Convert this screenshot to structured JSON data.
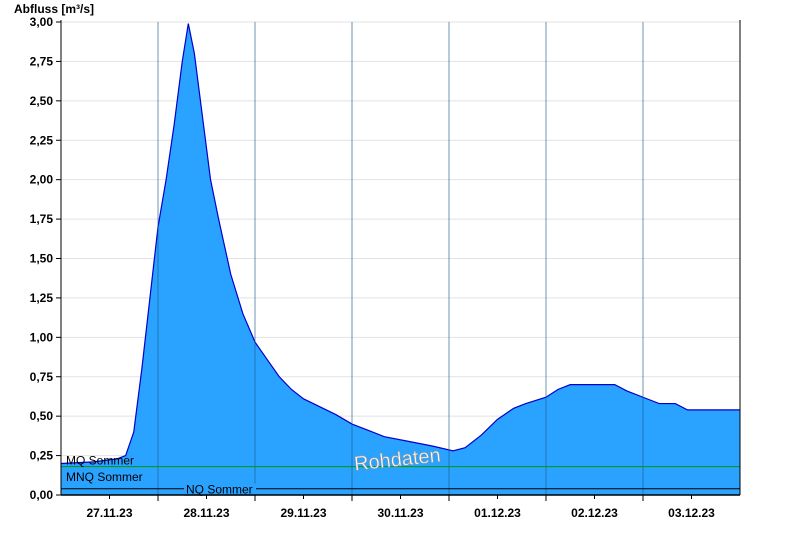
{
  "chart_data": {
    "type": "area",
    "ylabel": "Abfluss [m³/s]",
    "ylim": [
      0,
      3.0
    ],
    "xlim": [
      "2023-11-27T00:00",
      "2023-12-04T00:00"
    ],
    "yticks": [
      "0,00",
      "0,25",
      "0,50",
      "0,75",
      "1,00",
      "1,25",
      "1,50",
      "1,75",
      "2,00",
      "2,25",
      "2,50",
      "2,75",
      "3,00"
    ],
    "xtick_labels": [
      "27.11.23",
      "28.11.23",
      "29.11.23",
      "30.11.23",
      "01.12.23",
      "02.12.23",
      "03.12.23"
    ],
    "grid": true,
    "watermark": "Rohdaten",
    "colors": {
      "area": "#29a3ff",
      "line": "#0000cc",
      "mq": "#009900",
      "nq": "#000000"
    },
    "reference_lines": [
      {
        "name": "MQ Sommer",
        "value": 0.18
      },
      {
        "name": "MNQ Sommer",
        "value": 0.05
      },
      {
        "name": "NQ Sommer",
        "value": 0.04
      }
    ],
    "series": [
      {
        "points": [
          [
            "2023-11-26T23:40",
            0.2
          ],
          [
            "2023-11-27T08:00",
            0.21
          ],
          [
            "2023-11-27T14:00",
            0.23
          ],
          [
            "2023-11-27T16:00",
            0.25
          ],
          [
            "2023-11-27T18:00",
            0.4
          ],
          [
            "2023-11-27T20:00",
            0.8
          ],
          [
            "2023-11-27T22:00",
            1.25
          ],
          [
            "2023-11-28T00:00",
            1.7
          ],
          [
            "2023-11-28T02:00",
            2.0
          ],
          [
            "2023-11-28T04:00",
            2.35
          ],
          [
            "2023-11-28T06:00",
            2.75
          ],
          [
            "2023-11-28T07:30",
            2.99
          ],
          [
            "2023-11-28T09:00",
            2.8
          ],
          [
            "2023-11-28T11:00",
            2.4
          ],
          [
            "2023-11-28T13:00",
            2.0
          ],
          [
            "2023-11-28T15:00",
            1.75
          ],
          [
            "2023-11-28T18:00",
            1.4
          ],
          [
            "2023-11-28T21:00",
            1.15
          ],
          [
            "2023-11-29T00:00",
            0.97
          ],
          [
            "2023-11-29T03:00",
            0.86
          ],
          [
            "2023-11-29T06:00",
            0.75
          ],
          [
            "2023-11-29T09:00",
            0.67
          ],
          [
            "2023-11-29T12:00",
            0.61
          ],
          [
            "2023-11-29T16:00",
            0.56
          ],
          [
            "2023-11-29T20:00",
            0.51
          ],
          [
            "2023-11-30T00:00",
            0.45
          ],
          [
            "2023-11-30T04:00",
            0.41
          ],
          [
            "2023-11-30T08:00",
            0.37
          ],
          [
            "2023-11-30T14:00",
            0.34
          ],
          [
            "2023-11-30T20:00",
            0.31
          ],
          [
            "2023-12-01T01:00",
            0.28
          ],
          [
            "2023-12-01T04:00",
            0.3
          ],
          [
            "2023-12-01T08:00",
            0.38
          ],
          [
            "2023-12-01T12:00",
            0.48
          ],
          [
            "2023-12-01T16:00",
            0.55
          ],
          [
            "2023-12-01T19:00",
            0.58
          ],
          [
            "2023-12-02T00:00",
            0.62
          ],
          [
            "2023-12-02T03:00",
            0.67
          ],
          [
            "2023-12-02T06:00",
            0.7
          ],
          [
            "2023-12-02T12:00",
            0.7
          ],
          [
            "2023-12-02T17:00",
            0.7
          ],
          [
            "2023-12-02T20:00",
            0.66
          ],
          [
            "2023-12-03T00:00",
            0.62
          ],
          [
            "2023-12-03T04:00",
            0.58
          ],
          [
            "2023-12-03T08:00",
            0.58
          ],
          [
            "2023-12-03T11:00",
            0.54
          ],
          [
            "2023-12-04T00:00",
            0.54
          ]
        ]
      }
    ]
  }
}
